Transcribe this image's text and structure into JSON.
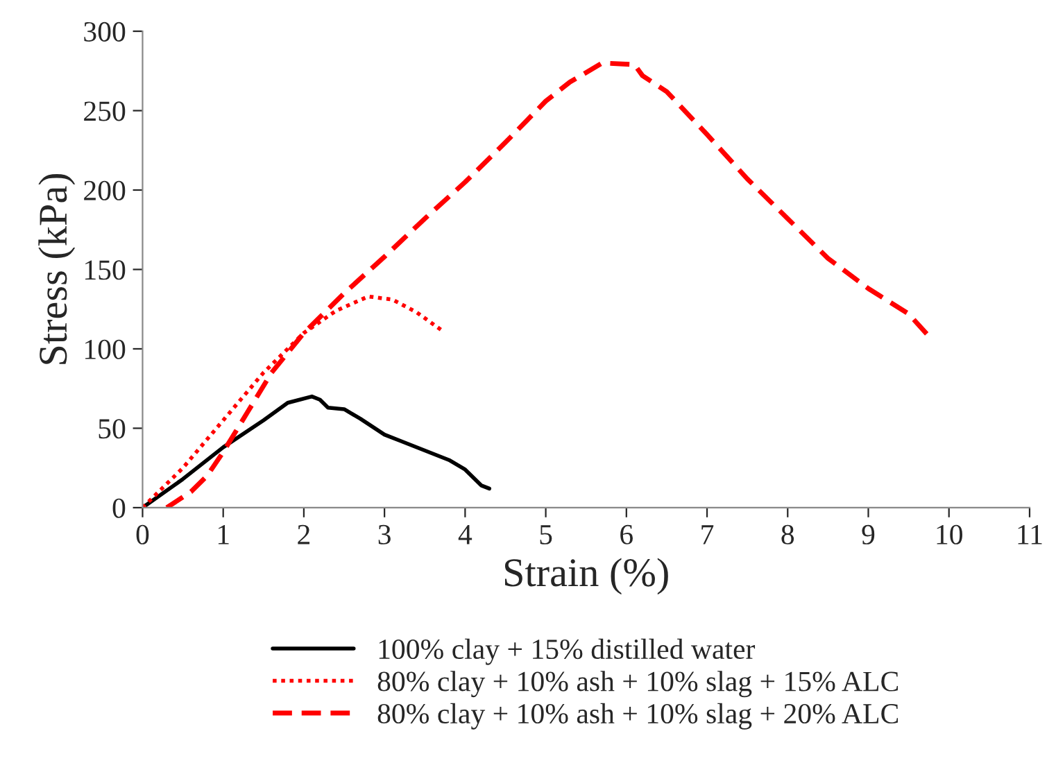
{
  "chart_data": {
    "type": "line",
    "xlabel": "Strain (%)",
    "ylabel": "Stress (kPa)",
    "xlim": [
      0,
      11
    ],
    "xticks": [
      0,
      1,
      2,
      3,
      4,
      5,
      6,
      7,
      8,
      9,
      10,
      11
    ],
    "ylim": [
      0,
      300
    ],
    "yticks": [
      0,
      50,
      100,
      150,
      200,
      250,
      300
    ],
    "grid": false,
    "legend": "bottom",
    "marker": "none",
    "series": [
      {
        "name": "100% clay + 15% distilled water",
        "color": "#000000",
        "line_style": "solid",
        "x": [
          0,
          0.5,
          1,
          1.5,
          1.8,
          2.1,
          2.2,
          2.3,
          2.5,
          2.7,
          3,
          3.2,
          3.5,
          3.8,
          4,
          4.2,
          4.3
        ],
        "values": [
          0,
          18,
          38,
          55,
          66,
          70,
          68,
          63,
          62,
          56,
          46,
          42,
          36,
          30,
          24,
          14,
          12
        ]
      },
      {
        "name": "80% clay + 10% ash + 10% slag + 15% ALC",
        "color": "#ff0000",
        "line_style": "dotted",
        "x": [
          0,
          0.5,
          1,
          1.5,
          2,
          2.4,
          2.8,
          3.1,
          3.4,
          3.7
        ],
        "values": [
          0,
          25,
          55,
          85,
          110,
          124,
          133,
          131,
          123,
          112
        ]
      },
      {
        "name": "80% clay + 10% ash + 10% slag + 20% ALC",
        "color": "#ff0000",
        "line_style": "dashed",
        "x": [
          0.3,
          0.6,
          0.8,
          1,
          1.3,
          1.6,
          2,
          2.5,
          3,
          3.5,
          4,
          4.5,
          5,
          5.3,
          5.7,
          6.1,
          6.2,
          6.5,
          7,
          7.5,
          8,
          8.5,
          9,
          9.5,
          9.75
        ],
        "values": [
          0,
          10,
          20,
          35,
          60,
          85,
          110,
          135,
          158,
          182,
          205,
          230,
          256,
          268,
          280,
          279,
          272,
          262,
          235,
          207,
          182,
          157,
          138,
          122,
          108
        ]
      }
    ]
  }
}
